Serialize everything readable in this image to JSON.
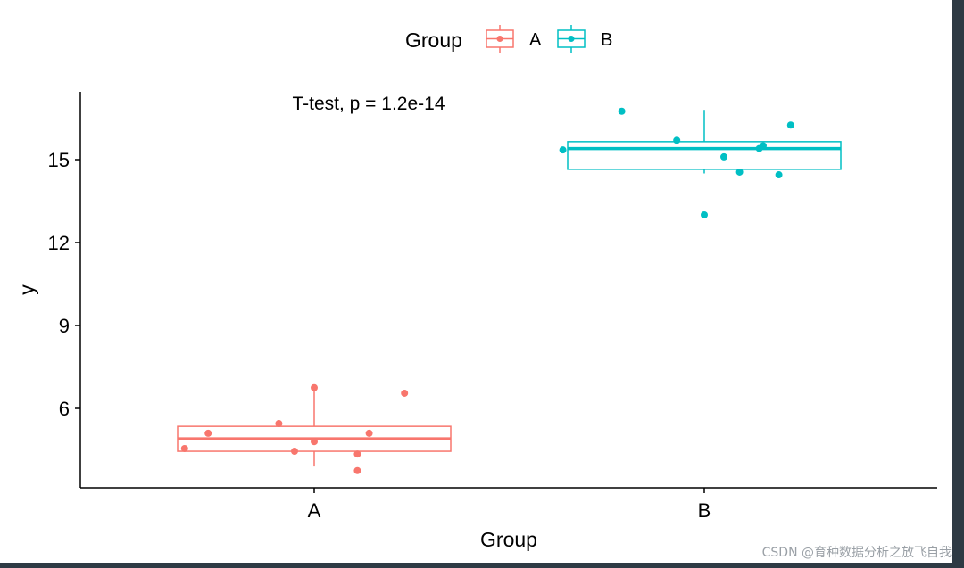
{
  "chart_data": {
    "type": "boxplot",
    "xlabel": "Group",
    "ylabel": "y",
    "categories": [
      "A",
      "B"
    ],
    "yticks": [
      6,
      9,
      12,
      15
    ],
    "ylim": [
      3,
      17.3
    ],
    "annotation": "T-test, p = 1.2e-14",
    "legend": {
      "title": "Group",
      "position": "top",
      "entries": [
        "A",
        "B"
      ]
    },
    "grid": false,
    "colors": {
      "A": "#F8766D",
      "B": "#00BFC4"
    },
    "groups": [
      {
        "name": "A",
        "min": 3.9,
        "q1": 4.45,
        "median": 4.9,
        "q3": 5.35,
        "max": 6.8,
        "points": [
          {
            "dx": 0.0,
            "y": 6.75
          },
          {
            "dx": 0.23,
            "y": 6.55
          },
          {
            "dx": -0.09,
            "y": 5.45
          },
          {
            "dx": -0.27,
            "y": 5.1
          },
          {
            "dx": 0.14,
            "y": 5.1
          },
          {
            "dx": 0.0,
            "y": 4.8
          },
          {
            "dx": -0.33,
            "y": 4.55
          },
          {
            "dx": -0.05,
            "y": 4.45
          },
          {
            "dx": 0.11,
            "y": 4.35
          },
          {
            "dx": 0.11,
            "y": 3.75
          }
        ]
      },
      {
        "name": "B",
        "min": 14.5,
        "q1": 14.65,
        "median": 15.4,
        "q3": 15.65,
        "max": 16.8,
        "points": [
          {
            "dx": -0.21,
            "y": 16.75
          },
          {
            "dx": 0.22,
            "y": 16.25
          },
          {
            "dx": -0.07,
            "y": 15.7
          },
          {
            "dx": 0.15,
            "y": 15.5
          },
          {
            "dx": 0.14,
            "y": 15.4
          },
          {
            "dx": -0.36,
            "y": 15.35
          },
          {
            "dx": 0.05,
            "y": 15.1
          },
          {
            "dx": 0.09,
            "y": 14.55
          },
          {
            "dx": 0.19,
            "y": 14.45
          },
          {
            "dx": 0.0,
            "y": 13.0
          }
        ]
      }
    ]
  },
  "watermark": "CSDN @育种数据分析之放飞自我"
}
